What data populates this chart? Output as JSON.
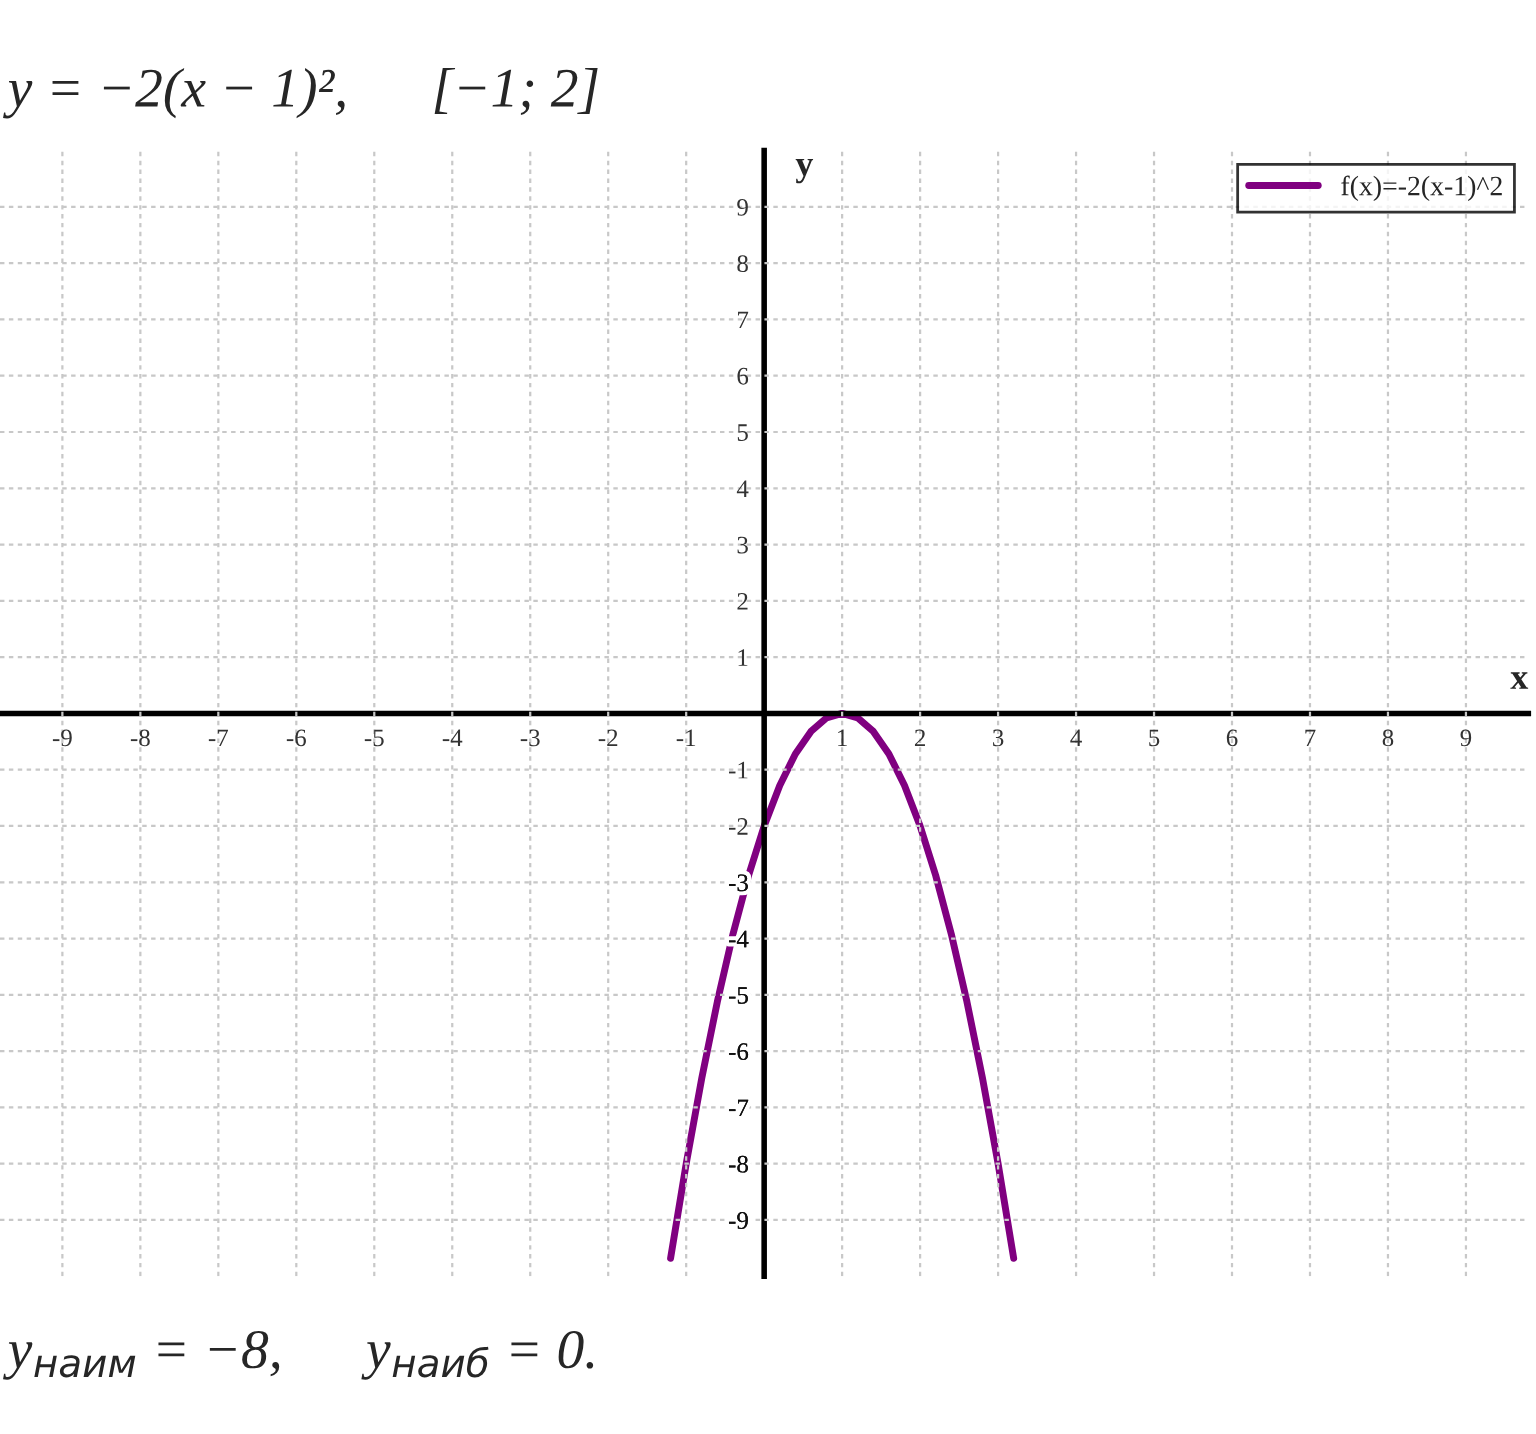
{
  "chart_data": {
    "type": "line",
    "title": "y = −2(x − 1)²,      [−1; 2]",
    "annotations": [
      "y$_{наим}$ = −8,      y$_{наиб}$ = 0."
    ],
    "xlabel": "x",
    "ylabel": "y",
    "series": [
      {
        "name": "f(x)=-2(x-1)^2",
        "color": "#800080",
        "x": [
          -1.2,
          -1.0,
          -0.8,
          -0.6,
          -0.4,
          -0.2,
          0.0,
          0.2,
          0.4,
          0.6,
          0.8,
          1.0,
          1.2,
          1.4,
          1.6,
          1.8,
          2.0,
          2.2,
          2.4,
          2.6,
          2.8,
          3.0,
          3.2
        ],
        "values": [
          -9.68,
          -8,
          -6.48,
          -5.12,
          -3.92,
          -2.88,
          -2,
          -1.28,
          -0.72,
          -0.32,
          -0.08,
          0,
          -0.08,
          -0.32,
          -0.72,
          -1.28,
          -2,
          -2.88,
          -3.92,
          -5.12,
          -6.48,
          -8,
          -9.68
        ]
      }
    ],
    "xlim": [
      -9.8,
      9.8
    ],
    "ylim": [
      -10,
      10
    ],
    "xticks": [
      -9,
      -8,
      -7,
      -6,
      -5,
      -4,
      -3,
      -2,
      -1,
      1,
      2,
      3,
      4,
      5,
      6,
      7,
      8,
      9
    ],
    "yticks": [
      -9,
      -8,
      -7,
      -6,
      -5,
      -4,
      -3,
      -2,
      -1,
      1,
      2,
      3,
      4,
      5,
      6,
      7,
      8,
      9
    ],
    "grid": true,
    "legend": "top right",
    "marker": "none",
    "line_style": "solid"
  }
}
